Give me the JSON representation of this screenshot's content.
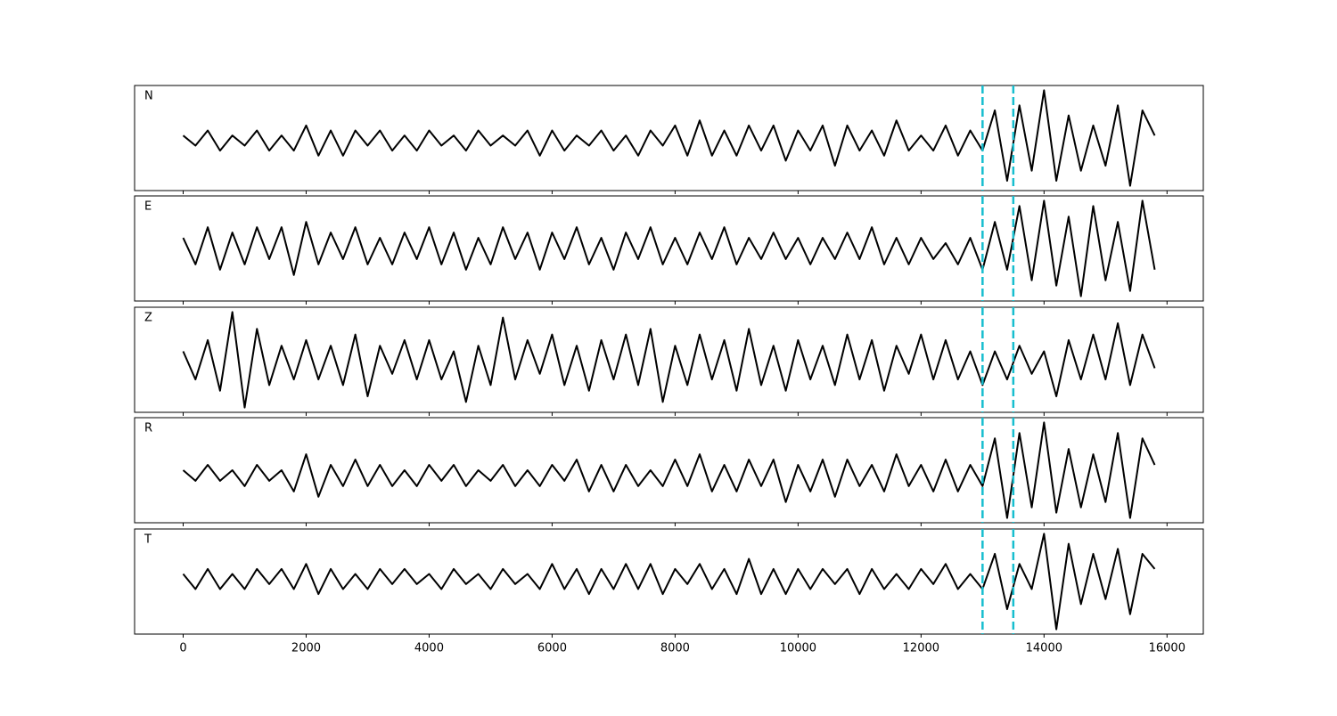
{
  "chart_data": {
    "type": "line",
    "subplots": true,
    "color": "#000000",
    "x": [
      0,
      200,
      400,
      600,
      800,
      1000,
      1200,
      1400,
      1600,
      1800,
      2000,
      2200,
      2400,
      2600,
      2800,
      3000,
      3200,
      3400,
      3600,
      3800,
      4000,
      4200,
      4400,
      4600,
      4800,
      5000,
      5200,
      5400,
      5600,
      5800,
      6000,
      6200,
      6400,
      6600,
      6800,
      7000,
      7200,
      7400,
      7600,
      7800,
      8000,
      8200,
      8400,
      8600,
      8800,
      9000,
      9200,
      9400,
      9600,
      9800,
      10000,
      10200,
      10400,
      10600,
      10800,
      11000,
      11200,
      11400,
      11600,
      11800,
      12000,
      12200,
      12400,
      12600,
      12800,
      13000,
      13200,
      13400,
      13600,
      13800,
      14000,
      14200,
      14400,
      14600,
      14800,
      15000,
      15200,
      15400,
      15600,
      15800
    ],
    "series": [
      {
        "name": "N",
        "values": [
          1,
          -1,
          2,
          -2,
          1,
          -1,
          2,
          -2,
          1,
          -2,
          3,
          -3,
          2,
          -3,
          2,
          -1,
          2,
          -2,
          1,
          -2,
          2,
          -1,
          1,
          -2,
          2,
          -1,
          1,
          -1,
          2,
          -3,
          2,
          -2,
          1,
          -1,
          2,
          -2,
          1,
          -3,
          2,
          -1,
          3,
          -3,
          4,
          -3,
          2,
          -3,
          3,
          -2,
          3,
          -4,
          2,
          -2,
          3,
          -5,
          3,
          -2,
          2,
          -3,
          4,
          -2,
          1,
          -2,
          3,
          -3,
          2,
          -2,
          6,
          -8,
          7,
          -6,
          10,
          -8,
          5,
          -6,
          3,
          -5,
          7,
          -9,
          6,
          1
        ]
      },
      {
        "name": "E",
        "values": [
          2,
          -3,
          4,
          -4,
          3,
          -3,
          4,
          -2,
          4,
          -5,
          5,
          -3,
          3,
          -2,
          4,
          -3,
          2,
          -3,
          3,
          -2,
          4,
          -3,
          3,
          -4,
          2,
          -3,
          4,
          -2,
          3,
          -4,
          3,
          -2,
          4,
          -3,
          2,
          -4,
          3,
          -2,
          4,
          -3,
          2,
          -3,
          3,
          -2,
          4,
          -3,
          2,
          -2,
          3,
          -2,
          2,
          -3,
          2,
          -2,
          3,
          -2,
          4,
          -3,
          2,
          -3,
          2,
          -2,
          1,
          -3,
          2,
          -4,
          5,
          -4,
          8,
          -6,
          9,
          -7,
          6,
          -9,
          8,
          -6,
          5,
          -8,
          9,
          -4
        ]
      },
      {
        "name": "Z",
        "values": [
          2,
          -3,
          4,
          -5,
          9,
          -8,
          6,
          -4,
          3,
          -3,
          4,
          -3,
          3,
          -4,
          5,
          -6,
          3,
          -2,
          4,
          -3,
          4,
          -3,
          2,
          -7,
          3,
          -4,
          8,
          -3,
          4,
          -2,
          5,
          -4,
          3,
          -5,
          4,
          -3,
          5,
          -4,
          6,
          -7,
          3,
          -4,
          5,
          -3,
          4,
          -5,
          6,
          -4,
          3,
          -5,
          4,
          -3,
          3,
          -4,
          5,
          -3,
          4,
          -5,
          3,
          -2,
          5,
          -3,
          4,
          -3,
          2,
          -4,
          2,
          -3,
          3,
          -2,
          2,
          -6,
          4,
          -3,
          5,
          -3,
          7,
          -4,
          5,
          -1
        ]
      },
      {
        "name": "R",
        "values": [
          1,
          -1,
          2,
          -1,
          1,
          -2,
          2,
          -1,
          1,
          -3,
          4,
          -4,
          2,
          -2,
          3,
          -2,
          2,
          -2,
          1,
          -2,
          2,
          -1,
          2,
          -2,
          1,
          -1,
          2,
          -2,
          1,
          -2,
          2,
          -1,
          3,
          -3,
          2,
          -3,
          2,
          -2,
          1,
          -2,
          3,
          -2,
          4,
          -3,
          2,
          -3,
          3,
          -2,
          3,
          -5,
          2,
          -3,
          3,
          -4,
          3,
          -2,
          2,
          -3,
          4,
          -2,
          2,
          -3,
          3,
          -3,
          2,
          -2,
          7,
          -8,
          8,
          -6,
          10,
          -7,
          5,
          -6,
          4,
          -5,
          8,
          -8,
          7,
          2
        ]
      },
      {
        "name": "T",
        "values": [
          1,
          -2,
          2,
          -2,
          1,
          -2,
          2,
          -1,
          2,
          -2,
          3,
          -3,
          2,
          -2,
          1,
          -2,
          2,
          -1,
          2,
          -1,
          1,
          -2,
          2,
          -1,
          1,
          -2,
          2,
          -1,
          1,
          -2,
          3,
          -2,
          2,
          -3,
          2,
          -2,
          3,
          -2,
          3,
          -3,
          2,
          -1,
          3,
          -2,
          2,
          -3,
          4,
          -3,
          2,
          -3,
          2,
          -2,
          2,
          -1,
          2,
          -3,
          2,
          -2,
          1,
          -2,
          2,
          -1,
          3,
          -2,
          1,
          -2,
          5,
          -6,
          3,
          -2,
          9,
          -10,
          7,
          -5,
          5,
          -4,
          6,
          -7,
          5,
          2
        ]
      }
    ],
    "xlim": [
      -790,
      16590
    ],
    "xticks": [
      0,
      2000,
      4000,
      6000,
      8000,
      10000,
      12000,
      14000,
      16000
    ],
    "vlines": [
      13000,
      13500
    ],
    "vline_color": "#17becf",
    "vline_style": "dashed"
  }
}
